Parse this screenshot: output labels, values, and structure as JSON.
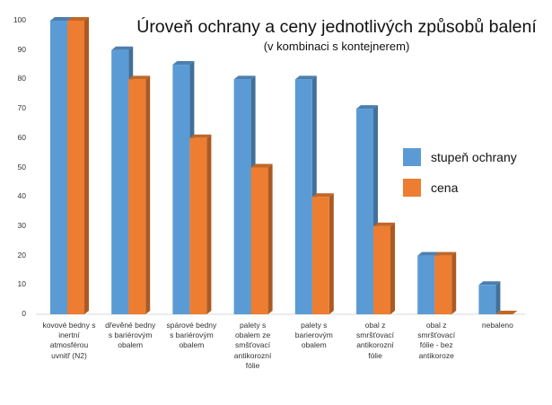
{
  "chart_data": {
    "type": "bar",
    "title": "Úroveň ochrany a ceny jednotlivých způsobů balení",
    "subtitle": "(v kombinaci s kontejnerem)",
    "xlabel": "",
    "ylabel": "",
    "ylim": [
      0,
      100
    ],
    "yticks": [
      "0",
      "10",
      "20",
      "30",
      "40",
      "50",
      "60",
      "70",
      "80",
      "90",
      "100"
    ],
    "grid": false,
    "legend_position": "right",
    "categories": [
      "kovové bedny s\ninertní\natmosférou\nuvnitř (N2)",
      "dřevěné bedny\ns bariérovým\nobalem",
      "spárové bedny\ns bariérovým\nobalem",
      "palety s\nobalem ze\nsmšťovací\nantikorozní\nfólie",
      "palety s\nbarierovým\nobalem",
      "obal z\nsmršťovací\nantikorozní\nfólie",
      "obal z\nsmršťovací\nfólie - bez\nantikoroze",
      "nebaleno"
    ],
    "series": [
      {
        "name": "stupeň ochrany",
        "color": "#5b9bd5",
        "values": [
          100,
          90,
          85,
          80,
          80,
          70,
          20,
          10
        ]
      },
      {
        "name": "cena",
        "color": "#ed7d31",
        "values": [
          100,
          80,
          60,
          50,
          40,
          30,
          20,
          0
        ]
      }
    ]
  }
}
